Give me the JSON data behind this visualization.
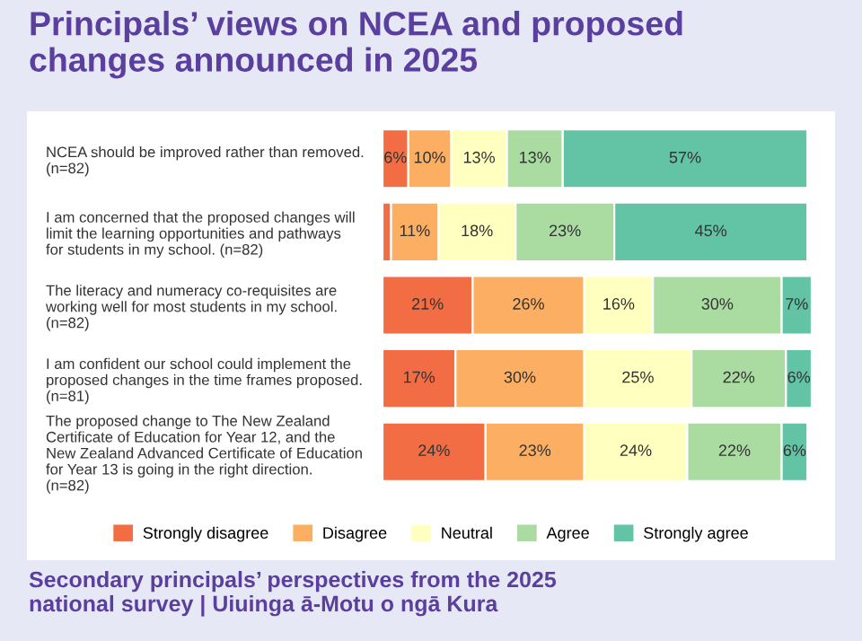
{
  "chart_data": {
    "type": "bar",
    "orientation": "horizontal",
    "stacked": true,
    "title": "Principals’ views on NCEA and proposed\nchanges announced in 2025",
    "categories": [
      "NCEA should be improved rather than removed.\n(n=82)",
      "I am concerned that the proposed changes will\nlimit the learning opportunities and pathways\nfor students in my school. (n=82)",
      "The literacy and numeracy co-requisites are\nworking well for most students in my school.\n(n=82)",
      "I am confident our school could implement the\nproposed changes in the time frames proposed.\n(n=81)",
      "The proposed change to The New Zealand\nCertificate of Education for Year 12, and the\nNew Zealand Advanced Certificate of Education\nfor Year 13 is going in the right direction.\n(n=82)"
    ],
    "series": [
      {
        "name": "Strongly disagree",
        "color": "#f26d44",
        "values": [
          6,
          2,
          21,
          17,
          24
        ],
        "value_labels": [
          "6%",
          null,
          "21%",
          "17%",
          "24%"
        ]
      },
      {
        "name": "Disagree",
        "color": "#fcae63",
        "values": [
          10,
          11,
          26,
          30,
          23
        ],
        "value_labels": [
          "10%",
          "11%",
          "26%",
          "30%",
          "23%"
        ]
      },
      {
        "name": "Neutral",
        "color": "#ffffc0",
        "values": [
          13,
          18,
          16,
          25,
          24
        ],
        "value_labels": [
          "13%",
          "18%",
          "16%",
          "25%",
          "24%"
        ]
      },
      {
        "name": "Agree",
        "color": "#aadca2",
        "values": [
          13,
          23,
          30,
          22,
          22
        ],
        "value_labels": [
          "13%",
          "23%",
          "30%",
          "22%",
          "22%"
        ]
      },
      {
        "name": "Strongly agree",
        "color": "#63c3a5",
        "values": [
          57,
          45,
          7,
          6,
          6
        ],
        "value_labels": [
          "57%",
          "45%",
          "7%",
          "6%",
          "6%"
        ]
      }
    ],
    "legend": "bottom",
    "annotations": [
      "Secondary principals’ perspectives from the 2025\nnational survey | Uiuinga ā-Motu o ngā Kura"
    ]
  }
}
